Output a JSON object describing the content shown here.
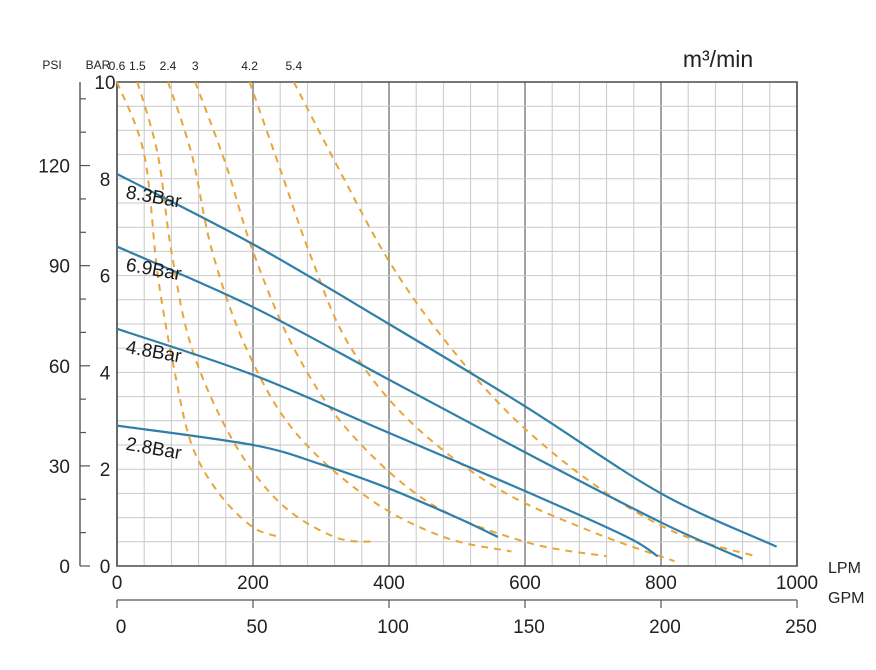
{
  "chart_data": {
    "type": "line",
    "title": "m³/min",
    "xlabel_primary": "LPM",
    "xlabel_secondary": "GPM",
    "ylabel_left": "PSI",
    "ylabel_right": "BAR",
    "xlim_lpm": [
      0,
      1000
    ],
    "ylim_bar": [
      0,
      10
    ],
    "x_ticks_lpm": [
      "0",
      "200",
      "400",
      "600",
      "800",
      "1000"
    ],
    "x_ticks_gpm": [
      "0",
      "50",
      "100",
      "150",
      "200",
      "250"
    ],
    "y_ticks_bar": [
      "0",
      "2",
      "4",
      "6",
      "8",
      "10"
    ],
    "y_ticks_psi": [
      "0",
      "30",
      "60",
      "90",
      "120"
    ],
    "air_consumption_labels": [
      "0.6",
      "1.5",
      "2.4",
      "3",
      "4.2",
      "5.4"
    ],
    "series": [
      {
        "name": "8.3Bar",
        "color": "#2f7fa8",
        "x": [
          0,
          200,
          400,
          600,
          800,
          970
        ],
        "y": [
          8.1,
          6.65,
          5.0,
          3.3,
          1.5,
          0.4
        ]
      },
      {
        "name": "6.9Bar",
        "color": "#2f7fa8",
        "x": [
          0,
          200,
          400,
          600,
          800,
          920
        ],
        "y": [
          6.6,
          5.35,
          3.85,
          2.35,
          0.9,
          0.15
        ]
      },
      {
        "name": "4.8Bar",
        "color": "#2f7fa8",
        "x": [
          0,
          200,
          400,
          600,
          750,
          795
        ],
        "y": [
          4.9,
          3.95,
          2.75,
          1.55,
          0.6,
          0.2
        ]
      },
      {
        "name": "2.8Bar",
        "color": "#2f7fa8",
        "x": [
          0,
          200,
          300,
          400,
          500,
          560
        ],
        "y": [
          2.9,
          2.5,
          2.1,
          1.6,
          1.0,
          0.6
        ]
      }
    ],
    "air_curves": [
      {
        "name": "0.6",
        "color": "#e8a53a",
        "x": [
          0,
          40,
          60,
          85,
          110,
          150,
          200,
          240
        ],
        "y": [
          10.0,
          8.5,
          6.0,
          4.0,
          2.5,
          1.5,
          0.8,
          0.6
        ]
      },
      {
        "name": "1.5",
        "color": "#e8a53a",
        "x": [
          30,
          60,
          80,
          110,
          170,
          240,
          320,
          380
        ],
        "y": [
          10.0,
          8.5,
          6.5,
          4.5,
          2.6,
          1.3,
          0.6,
          0.5
        ]
      },
      {
        "name": "2.4",
        "color": "#e8a53a",
        "x": [
          75,
          110,
          140,
          190,
          260,
          370,
          480,
          580
        ],
        "y": [
          10.0,
          8.5,
          6.5,
          4.5,
          2.8,
          1.4,
          0.6,
          0.3
        ]
      },
      {
        "name": "3",
        "color": "#e8a53a",
        "x": [
          115,
          160,
          200,
          260,
          340,
          460,
          600,
          720
        ],
        "y": [
          10.0,
          8.3,
          6.5,
          4.5,
          2.8,
          1.3,
          0.5,
          0.2
        ]
      },
      {
        "name": "4.2",
        "color": "#e8a53a",
        "x": [
          195,
          240,
          285,
          340,
          430,
          560,
          700,
          820
        ],
        "y": [
          10.0,
          8.2,
          6.4,
          4.6,
          3.0,
          1.6,
          0.7,
          0.1
        ]
      },
      {
        "name": "5.4",
        "color": "#e8a53a",
        "x": [
          260,
          330,
          400,
          480,
          580,
          700,
          820,
          940
        ],
        "y": [
          10.0,
          8.1,
          6.3,
          4.7,
          3.1,
          1.7,
          0.7,
          0.2
        ]
      }
    ]
  }
}
